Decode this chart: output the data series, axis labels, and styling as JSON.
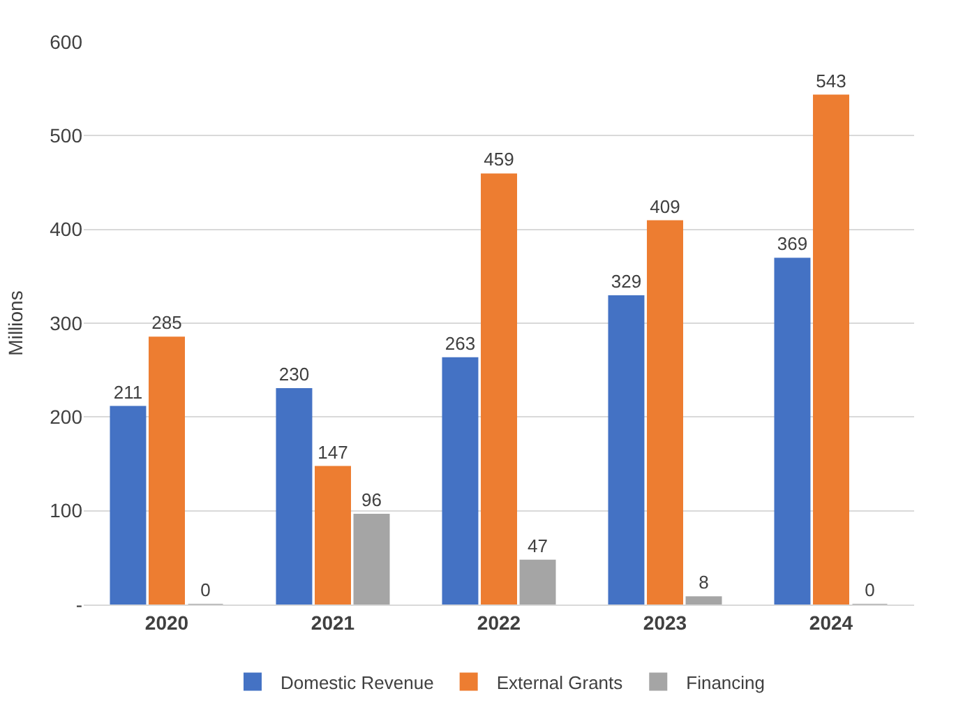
{
  "chart_data": {
    "type": "bar",
    "ylabel": "Millions",
    "categories": [
      "2020",
      "2021",
      "2022",
      "2023",
      "2024"
    ],
    "series": [
      {
        "name": "Domestic Revenue",
        "color": "#4472c4",
        "values": [
          211,
          230,
          263,
          329,
          369
        ]
      },
      {
        "name": "External Grants",
        "color": "#ed7d31",
        "values": [
          285,
          147,
          459,
          409,
          543
        ]
      },
      {
        "name": "Financing",
        "color": "#a5a5a5",
        "values": [
          0,
          96,
          47,
          8,
          0
        ]
      }
    ],
    "ylim": [
      0,
      600
    ],
    "yticks": [
      {
        "value": 0,
        "label": "-"
      },
      100,
      200,
      300,
      400,
      500,
      600
    ],
    "grid": "y",
    "legend": "bottom",
    "data_labels": true
  }
}
